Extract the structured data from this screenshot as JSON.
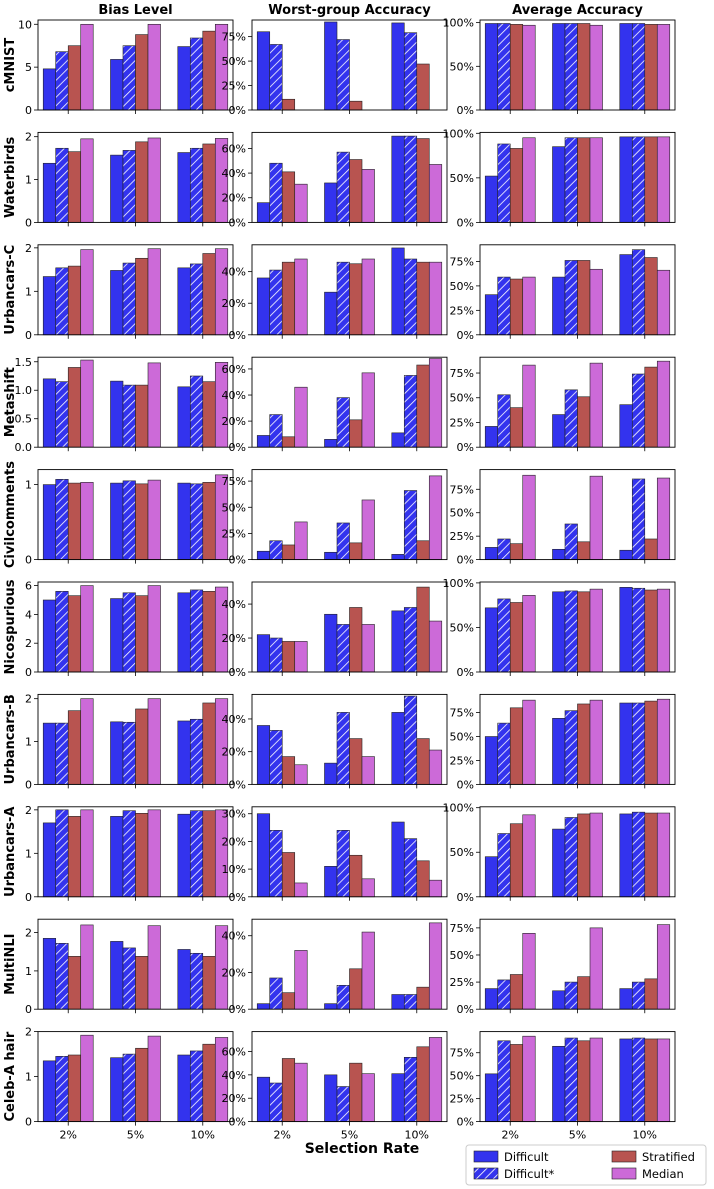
{
  "chart_data": {
    "type": "bar",
    "title": "",
    "xlabel": "Selection Rate",
    "column_titles": [
      "Bias Level",
      "Worst-group Accuracy",
      "Average Accuracy"
    ],
    "categories": [
      "2%",
      "5%",
      "10%"
    ],
    "series_names": [
      "Difficult",
      "Difficult*",
      "Stratified",
      "Median"
    ],
    "colors": {
      "Difficult": "#3333ee",
      "Difficult*": "#3333ee",
      "Stratified": "#b85450",
      "Median": "#cc6ad8"
    },
    "legend": {
      "placement": "bottom-right",
      "entries": [
        "Difficult",
        "Difficult*",
        "Stratified",
        "Median"
      ]
    },
    "rows": [
      {
        "dataset": "cMNIST",
        "bias": {
          "ylim": [
            0,
            10.5
          ],
          "ticks": [
            0,
            5,
            10
          ],
          "tick_labels": [
            "0",
            "5",
            "10"
          ],
          "values": [
            [
              4.8,
              6.8,
              7.5,
              10.0
            ],
            [
              5.9,
              7.5,
              8.8,
              10.0
            ],
            [
              7.4,
              8.4,
              9.2,
              10.0
            ]
          ]
        },
        "worst": {
          "ylim": [
            0,
            92
          ],
          "ticks": [
            0,
            25,
            50,
            75
          ],
          "tick_labels": [
            "0%",
            "25%",
            "50%",
            "75%"
          ],
          "values": [
            [
              80,
              67,
              11,
              0
            ],
            [
              90,
              72,
              9,
              0
            ],
            [
              89,
              79,
              47,
              0
            ]
          ]
        },
        "avg": {
          "ylim": [
            0,
            103
          ],
          "ticks": [
            0,
            50,
            100
          ],
          "tick_labels": [
            "0%",
            "50%",
            "100%"
          ],
          "values": [
            [
              99,
              99,
              98,
              97
            ],
            [
              99,
              99,
              99,
              97
            ],
            [
              99,
              99,
              98,
              98
            ]
          ]
        }
      },
      {
        "dataset": "Waterbirds",
        "bias": {
          "ylim": [
            0,
            2.1
          ],
          "ticks": [
            0,
            1,
            2
          ],
          "tick_labels": [
            "0",
            "1",
            "2"
          ],
          "values": [
            [
              1.38,
              1.73,
              1.65,
              1.95
            ],
            [
              1.57,
              1.68,
              1.88,
              1.97
            ],
            [
              1.63,
              1.73,
              1.83,
              1.96
            ]
          ]
        },
        "worst": {
          "ylim": [
            0,
            73
          ],
          "ticks": [
            0,
            20,
            40,
            60
          ],
          "tick_labels": [
            "0%",
            "20%",
            "40%",
            "60%"
          ],
          "values": [
            [
              16,
              48,
              41,
              31
            ],
            [
              32,
              57,
              51,
              43
            ],
            [
              70,
              70,
              68,
              47
            ]
          ]
        },
        "avg": {
          "ylim": [
            0,
            101
          ],
          "ticks": [
            0,
            50,
            100
          ],
          "tick_labels": [
            "0%",
            "50%",
            "100%"
          ],
          "values": [
            [
              52,
              88,
              83,
              95
            ],
            [
              85,
              95,
              95,
              95
            ],
            [
              96,
              96,
              96,
              96
            ]
          ]
        }
      },
      {
        "dataset": "Urbancars-C",
        "bias": {
          "ylim": [
            0,
            2.07
          ],
          "ticks": [
            0,
            1,
            2
          ],
          "tick_labels": [
            "0",
            "1",
            "2"
          ],
          "values": [
            [
              1.34,
              1.54,
              1.58,
              1.96
            ],
            [
              1.48,
              1.65,
              1.76,
              1.98
            ],
            [
              1.54,
              1.63,
              1.87,
              1.98
            ]
          ]
        },
        "worst": {
          "ylim": [
            0,
            57
          ],
          "ticks": [
            0,
            20,
            40
          ],
          "tick_labels": [
            "0%",
            "20%",
            "40%"
          ],
          "values": [
            [
              36,
              41,
              46,
              48
            ],
            [
              27,
              46,
              45,
              48
            ],
            [
              55,
              48,
              46,
              46
            ]
          ]
        },
        "avg": {
          "ylim": [
            0,
            92
          ],
          "ticks": [
            0,
            25,
            50,
            75
          ],
          "tick_labels": [
            "0%",
            "25%",
            "50%",
            "75%"
          ],
          "values": [
            [
              41,
              59,
              57,
              59
            ],
            [
              59,
              76,
              76,
              67
            ],
            [
              82,
              87,
              79,
              66
            ]
          ]
        }
      },
      {
        "dataset": "Metashift",
        "bias": {
          "ylim": [
            0,
            1.58
          ],
          "ticks": [
            0,
            0.5,
            1.0,
            1.5
          ],
          "tick_labels": [
            "0.0",
            "0.5",
            "1.0",
            "1.5"
          ],
          "values": [
            [
              1.2,
              1.15,
              1.4,
              1.53
            ],
            [
              1.16,
              1.09,
              1.09,
              1.48
            ],
            [
              1.06,
              1.25,
              1.15,
              1.49
            ]
          ]
        },
        "worst": {
          "ylim": [
            0,
            69
          ],
          "ticks": [
            0,
            20,
            40,
            60
          ],
          "tick_labels": [
            "0%",
            "20%",
            "40%",
            "60%"
          ],
          "values": [
            [
              9,
              25,
              8,
              46
            ],
            [
              6,
              38,
              21,
              57
            ],
            [
              11,
              55,
              63,
              68
            ]
          ]
        },
        "avg": {
          "ylim": [
            0,
            91
          ],
          "ticks": [
            0,
            25,
            50,
            75
          ],
          "tick_labels": [
            "0%",
            "25%",
            "50%",
            "75%"
          ],
          "values": [
            [
              21,
              53,
              40,
              83
            ],
            [
              33,
              58,
              51,
              85
            ],
            [
              43,
              74,
              81,
              87
            ]
          ]
        }
      },
      {
        "dataset": "Civilcomments",
        "bias": {
          "ylim": [
            0,
            1.2
          ],
          "ticks": [
            0,
            1
          ],
          "tick_labels": [
            "0",
            "1"
          ],
          "values": [
            [
              1.0,
              1.07,
              1.02,
              1.03
            ],
            [
              1.02,
              1.05,
              1.01,
              1.06
            ],
            [
              1.02,
              1.01,
              1.03,
              1.13
            ]
          ]
        },
        "worst": {
          "ylim": [
            0,
            86
          ],
          "ticks": [
            0,
            25,
            50,
            75
          ],
          "tick_labels": [
            "0%",
            "25%",
            "50%",
            "75%"
          ],
          "values": [
            [
              8,
              18,
              14,
              36
            ],
            [
              7,
              35,
              16,
              57
            ],
            [
              5,
              66,
              18,
              80
            ]
          ]
        },
        "avg": {
          "ylim": [
            0,
            96
          ],
          "ticks": [
            0,
            25,
            50,
            75
          ],
          "tick_labels": [
            "0%",
            "25%",
            "50%",
            "75%"
          ],
          "values": [
            [
              13,
              22,
              17,
              90
            ],
            [
              11,
              38,
              19,
              89
            ],
            [
              10,
              86,
              22,
              87
            ]
          ]
        }
      },
      {
        "dataset": "Nicospurious",
        "bias": {
          "ylim": [
            0,
            6.25
          ],
          "ticks": [
            0,
            2,
            4,
            6
          ],
          "tick_labels": [
            "0",
            "2",
            "4",
            "6"
          ],
          "values": [
            [
              5.0,
              5.6,
              5.3,
              6.0
            ],
            [
              5.1,
              5.5,
              5.3,
              6.0
            ],
            [
              5.5,
              5.7,
              5.6,
              5.9
            ]
          ]
        },
        "worst": {
          "ylim": [
            0,
            53
          ],
          "ticks": [
            0,
            20,
            40
          ],
          "tick_labels": [
            "0%",
            "20%",
            "40%"
          ],
          "values": [
            [
              22,
              20,
              18,
              18
            ],
            [
              34,
              28,
              38,
              28
            ],
            [
              36,
              38,
              50,
              30
            ]
          ]
        },
        "avg": {
          "ylim": [
            0,
            101
          ],
          "ticks": [
            0,
            50,
            100
          ],
          "tick_labels": [
            "0%",
            "50%",
            "100%"
          ],
          "values": [
            [
              72,
              82,
              78,
              86
            ],
            [
              90,
              91,
              90,
              93
            ],
            [
              95,
              94,
              92,
              93
            ]
          ]
        }
      },
      {
        "dataset": "Urbancars-B",
        "bias": {
          "ylim": [
            0,
            2.1
          ],
          "ticks": [
            0,
            1,
            2
          ],
          "tick_labels": [
            "0",
            "1",
            "2"
          ],
          "values": [
            [
              1.43,
              1.43,
              1.72,
              2.0
            ],
            [
              1.46,
              1.45,
              1.76,
              2.0
            ],
            [
              1.48,
              1.52,
              1.9,
              2.0
            ]
          ]
        },
        "worst": {
          "ylim": [
            0,
            55
          ],
          "ticks": [
            0,
            20,
            40
          ],
          "tick_labels": [
            "0%",
            "20%",
            "40%"
          ],
          "values": [
            [
              36,
              33,
              17,
              12
            ],
            [
              13,
              44,
              28,
              17
            ],
            [
              44,
              54,
              28,
              21
            ]
          ]
        },
        "avg": {
          "ylim": [
            0,
            94
          ],
          "ticks": [
            0,
            25,
            50,
            75
          ],
          "tick_labels": [
            "0%",
            "25%",
            "50%",
            "75%"
          ],
          "values": [
            [
              50,
              64,
              80,
              88
            ],
            [
              69,
              77,
              84,
              88
            ],
            [
              85,
              85,
              87,
              89
            ]
          ]
        }
      },
      {
        "dataset": "Urbancars-A",
        "bias": {
          "ylim": [
            0,
            2.07
          ],
          "ticks": [
            0,
            1,
            2
          ],
          "tick_labels": [
            "0",
            "1",
            "2"
          ],
          "values": [
            [
              1.7,
              2.0,
              1.85,
              2.0
            ],
            [
              1.85,
              1.98,
              1.92,
              2.0
            ],
            [
              1.9,
              1.98,
              1.98,
              2.0
            ]
          ]
        },
        "worst": {
          "ylim": [
            0,
            32.5
          ],
          "ticks": [
            0,
            10,
            20,
            30
          ],
          "tick_labels": [
            "0%",
            "10%",
            "20%",
            "30%"
          ],
          "values": [
            [
              30,
              24,
              16,
              5
            ],
            [
              11,
              24,
              15,
              6.5
            ],
            [
              27,
              21,
              13,
              6
            ]
          ]
        },
        "avg": {
          "ylim": [
            0,
            101
          ],
          "ticks": [
            0,
            50,
            100
          ],
          "tick_labels": [
            "0%",
            "50%",
            "100%"
          ],
          "values": [
            [
              45,
              71,
              82,
              92
            ],
            [
              76,
              89,
              93,
              94
            ],
            [
              93,
              95,
              94,
              94
            ]
          ]
        }
      },
      {
        "dataset": "MultiNLI",
        "bias": {
          "ylim": [
            0,
            2.35
          ],
          "ticks": [
            0,
            1,
            2
          ],
          "tick_labels": [
            "0",
            "1",
            "2"
          ],
          "values": [
            [
              1.85,
              1.72,
              1.38,
              2.2
            ],
            [
              1.77,
              1.6,
              1.38,
              2.18
            ],
            [
              1.56,
              1.46,
              1.38,
              2.18
            ]
          ]
        },
        "worst": {
          "ylim": [
            0,
            49
          ],
          "ticks": [
            0,
            20,
            40
          ],
          "tick_labels": [
            "0%",
            "20%",
            "40%"
          ],
          "values": [
            [
              3,
              17,
              9,
              32
            ],
            [
              3,
              13,
              22,
              42
            ],
            [
              8,
              8,
              12,
              47
            ]
          ]
        },
        "avg": {
          "ylim": [
            0,
            83
          ],
          "ticks": [
            0,
            25,
            50,
            75
          ],
          "tick_labels": [
            "0%",
            "25%",
            "50%",
            "75%"
          ],
          "values": [
            [
              19,
              27,
              32,
              70
            ],
            [
              17,
              25,
              30,
              75
            ],
            [
              19,
              25,
              28,
              78
            ]
          ]
        }
      },
      {
        "dataset": "Celeb-A hair",
        "bias": {
          "ylim": [
            0,
            2.0
          ],
          "ticks": [
            0,
            1,
            2
          ],
          "tick_labels": [
            "0",
            "1",
            "2"
          ],
          "values": [
            [
              1.35,
              1.45,
              1.48,
              1.92
            ],
            [
              1.42,
              1.5,
              1.63,
              1.9
            ],
            [
              1.48,
              1.57,
              1.72,
              1.87
            ]
          ]
        },
        "worst": {
          "ylim": [
            0,
            77
          ],
          "ticks": [
            0,
            20,
            40,
            60
          ],
          "tick_labels": [
            "0%",
            "20%",
            "40%",
            "60%"
          ],
          "values": [
            [
              38,
              33,
              54,
              50
            ],
            [
              40,
              30,
              50,
              41
            ],
            [
              41,
              55,
              64,
              72
            ]
          ]
        },
        "avg": {
          "ylim": [
            0,
            98
          ],
          "ticks": [
            0,
            25,
            50,
            75
          ],
          "tick_labels": [
            "0%",
            "25%",
            "50%",
            "75%"
          ],
          "values": [
            [
              52,
              88,
              84,
              93
            ],
            [
              82,
              91,
              88,
              91
            ],
            [
              90,
              91,
              90,
              90
            ]
          ]
        }
      }
    ]
  }
}
